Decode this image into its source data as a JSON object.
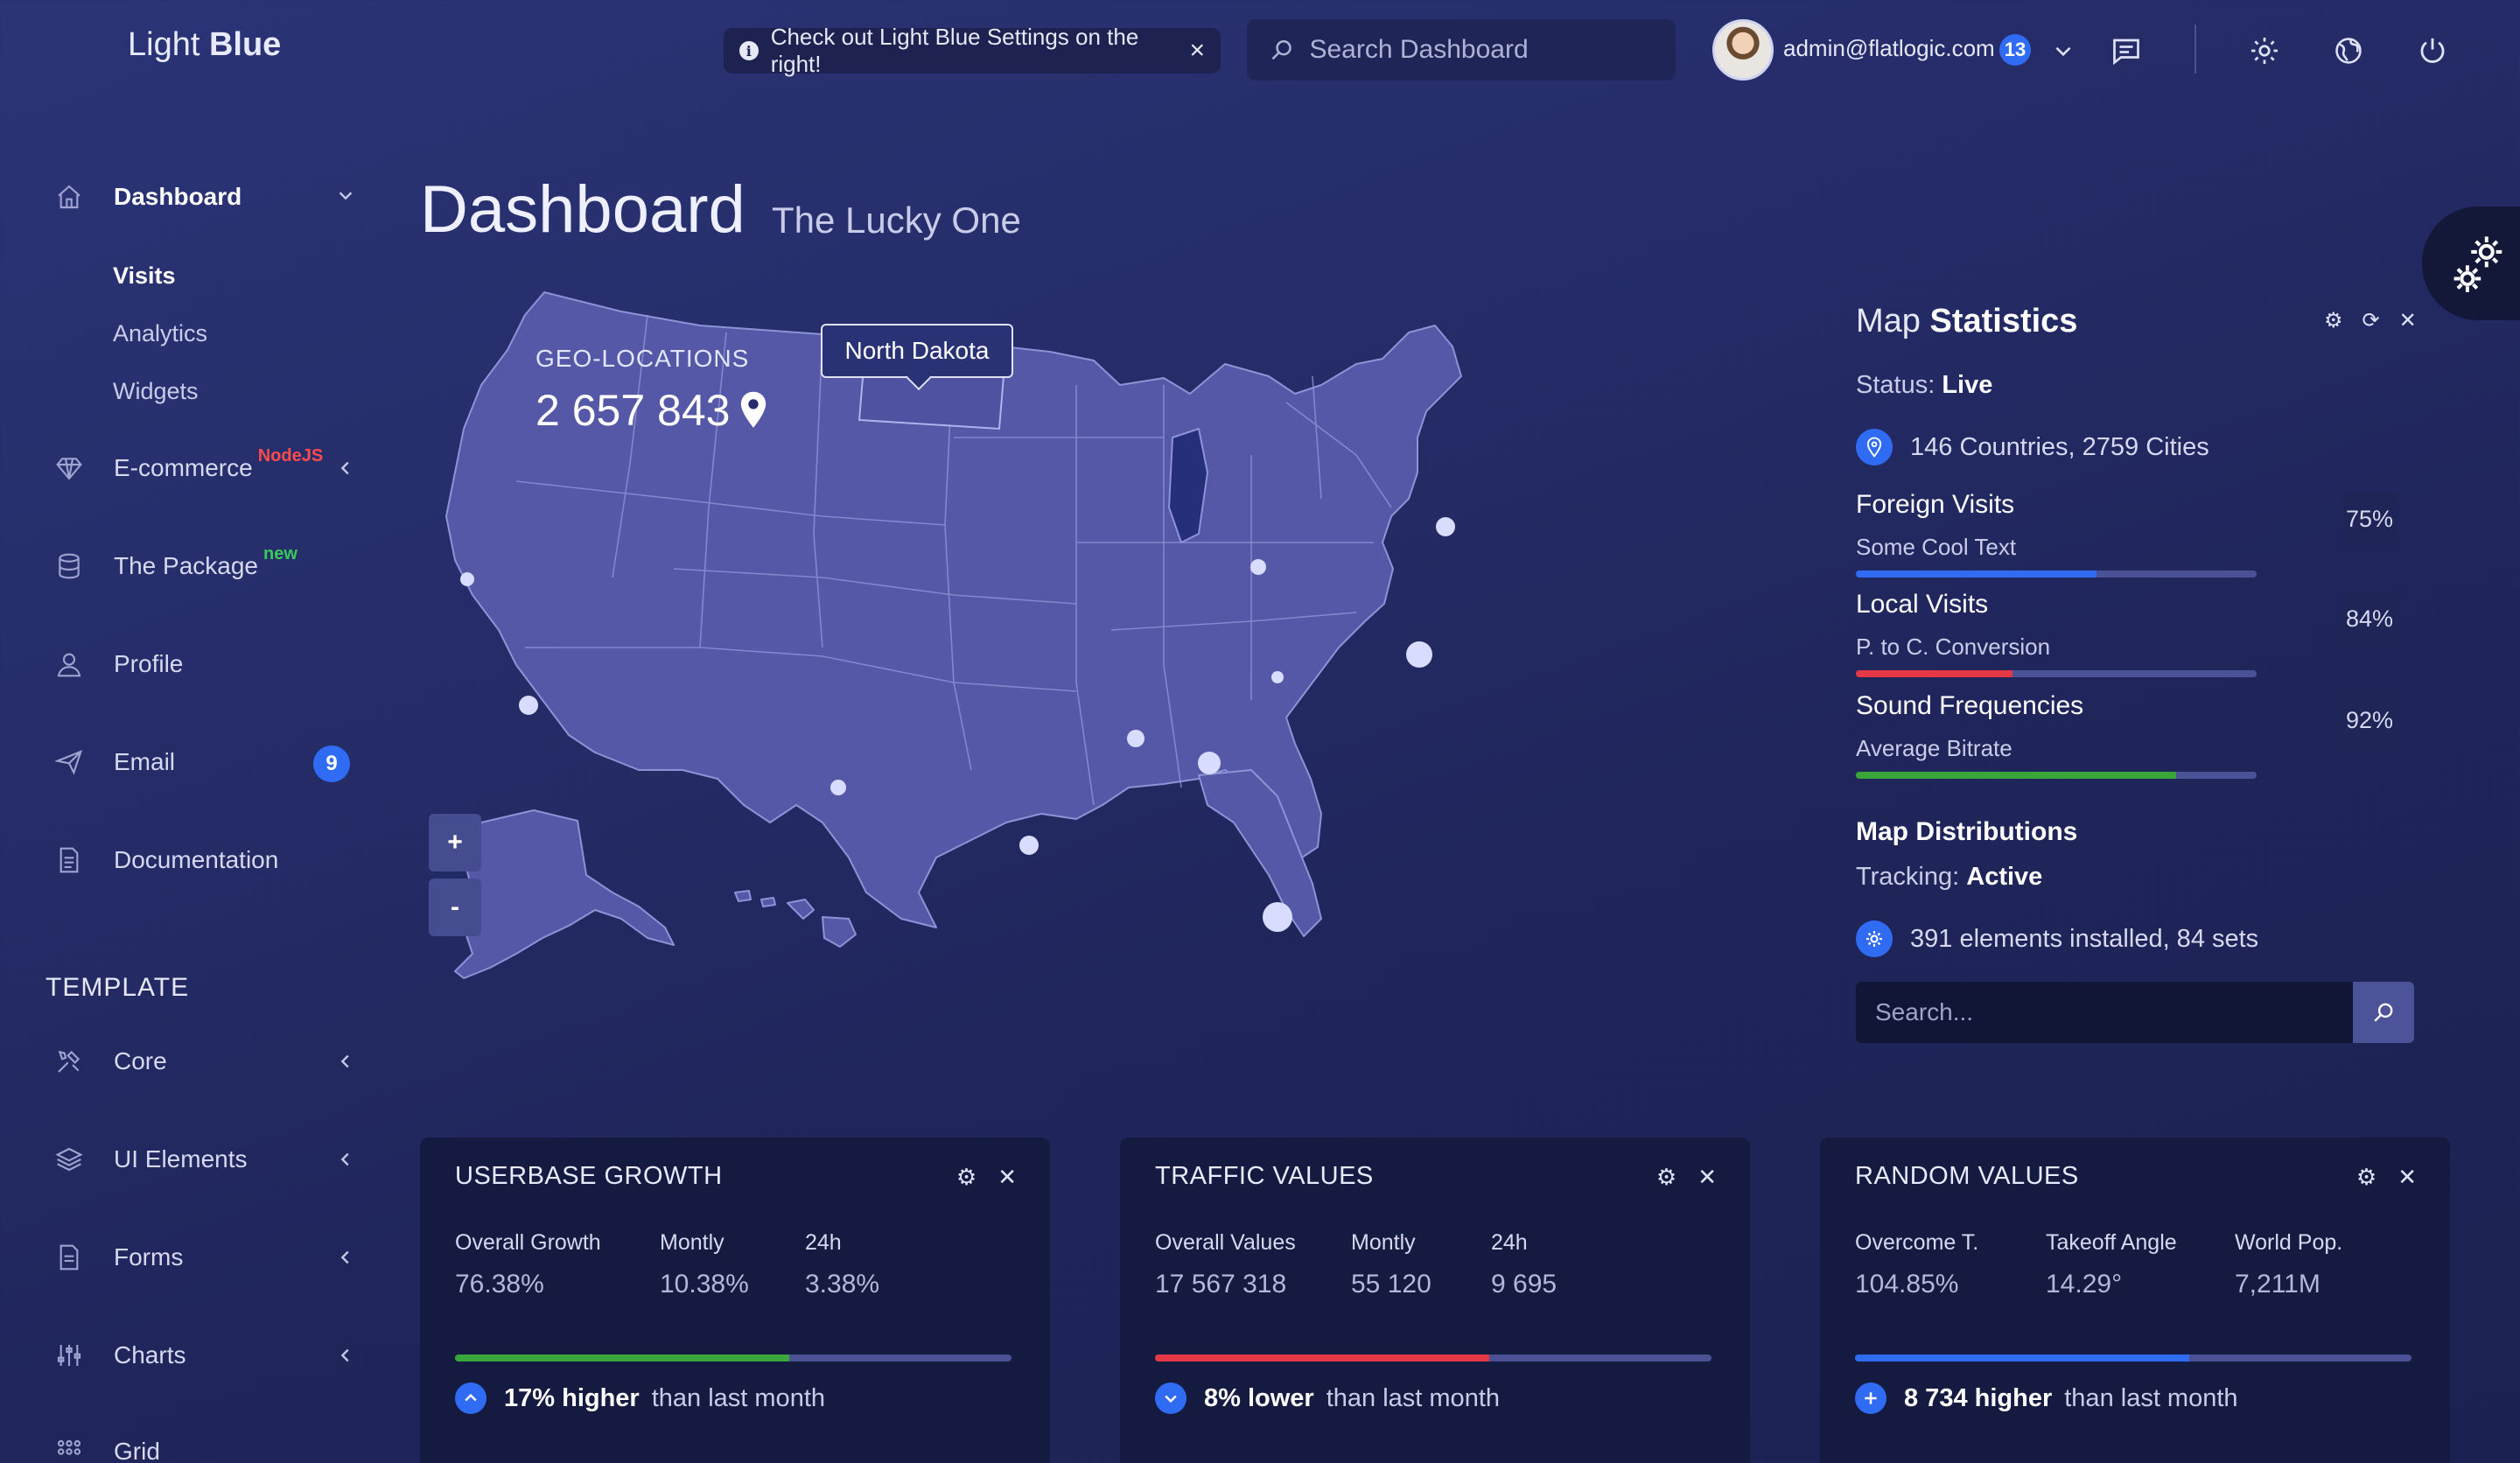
{
  "header": {
    "logo_light": "Light",
    "logo_bold": "Blue",
    "notice": "Check out Light Blue Settings on the right!",
    "notice_info_icon": "info-icon",
    "search_placeholder": "Search Dashboard",
    "user_email": "admin@flatlogic.com",
    "user_badge": "13"
  },
  "sidebar": {
    "items": [
      {
        "label": "Dashboard",
        "icon": "home-icon"
      },
      {
        "label": "E-commerce",
        "tag": "NodeJS",
        "icon": "diamond-icon"
      },
      {
        "label": "The Package",
        "tag": "new",
        "icon": "database-icon"
      },
      {
        "label": "Profile",
        "icon": "user-icon"
      },
      {
        "label": "Email",
        "badge": "9",
        "icon": "paper-plane-icon"
      },
      {
        "label": "Documentation",
        "icon": "document-icon"
      }
    ],
    "sub_items": [
      "Visits",
      "Analytics",
      "Widgets"
    ],
    "section_title": "TEMPLATE",
    "template_items": [
      {
        "label": "Core",
        "icon": "tools-icon"
      },
      {
        "label": "UI Elements",
        "icon": "layers-icon"
      },
      {
        "label": "Forms",
        "icon": "form-icon"
      },
      {
        "label": "Charts",
        "icon": "sliders-icon"
      },
      {
        "label": "Grid",
        "icon": "grid-icon"
      }
    ]
  },
  "page": {
    "title": "Dashboard",
    "subtitle": "The Lucky One"
  },
  "map": {
    "geo_label": "GEO-LOCATIONS",
    "geo_value": "2 657 843",
    "tooltip": "North Dakota",
    "zoom_in": "+",
    "zoom_out": "-"
  },
  "map_stats": {
    "title_light": "Map",
    "title_bold": "Statistics",
    "status_label": "Status:",
    "status_value": "Live",
    "countries": "146 Countries, 2759 Cities",
    "stats": [
      {
        "name": "Foreign Visits",
        "sub": "Some Cool Text",
        "pct": "75%",
        "fill": 0.6,
        "color": "#2f6cf3"
      },
      {
        "name": "Local Visits",
        "sub": "P. to C. Conversion",
        "pct": "84%",
        "fill": 0.39,
        "color": "#e53845"
      },
      {
        "name": "Sound Frequencies",
        "sub": "Average Bitrate",
        "pct": "92%",
        "fill": 0.8,
        "color": "#3aa63a"
      }
    ],
    "dist_title": "Map Distributions",
    "tracking_label": "Tracking:",
    "tracking_value": "Active",
    "installed": "391 elements installed, 84 sets",
    "search_placeholder": "Search..."
  },
  "cards": [
    {
      "title": "USERBASE GROWTH",
      "stats": [
        {
          "label": "Overall Growth",
          "value": "76.38%"
        },
        {
          "label": "Montly",
          "value": "10.38%"
        },
        {
          "label": "24h",
          "value": "3.38%"
        }
      ],
      "fill": 0.6,
      "bar_color": "#3aa63a",
      "foot_bold": "17% higher",
      "foot_text": "than last month",
      "foot_icon": "chevron-up-icon"
    },
    {
      "title": "TRAFFIC VALUES",
      "stats": [
        {
          "label": "Overall Values",
          "value": "17 567 318"
        },
        {
          "label": "Montly",
          "value": "55 120"
        },
        {
          "label": "24h",
          "value": "9 695"
        }
      ],
      "fill": 0.6,
      "bar_color": "#e53845",
      "foot_bold": "8% lower",
      "foot_text": "than last month",
      "foot_icon": "chevron-down-icon"
    },
    {
      "title": "RANDOM VALUES",
      "stats": [
        {
          "label": "Overcome T.",
          "value": "104.85%"
        },
        {
          "label": "Takeoff Angle",
          "value": "14.29°"
        },
        {
          "label": "World Pop.",
          "value": "7,211M"
        }
      ],
      "fill": 0.6,
      "bar_color": "#2f6cf3",
      "foot_bold": "8 734 higher",
      "foot_text": "than last month",
      "foot_icon": "plus-icon"
    }
  ]
}
